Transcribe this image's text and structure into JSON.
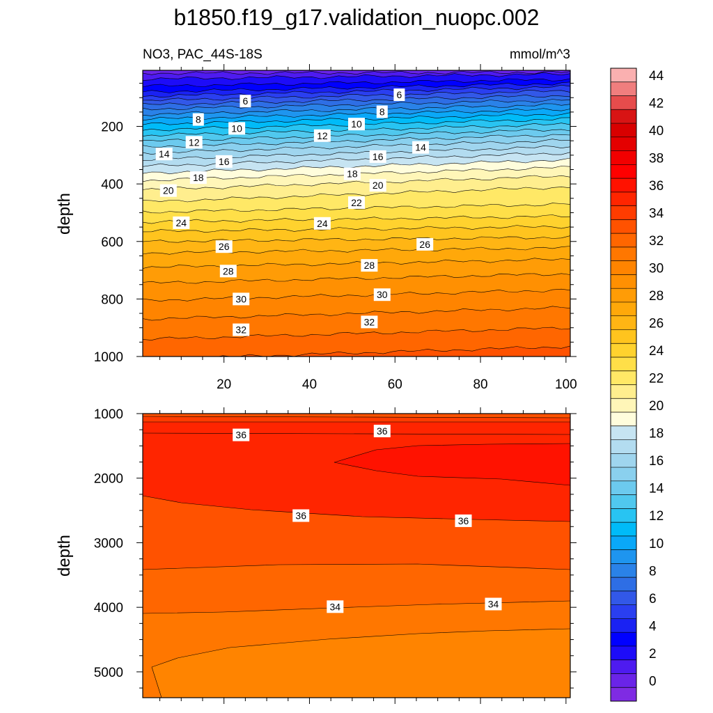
{
  "chart_data": {
    "type": "heatmap",
    "title": "b1850.f19_g17.validation_nuopc.002",
    "subtitle_left": "NO3, PAC_44S-18S",
    "subtitle_right": "mmol/m^3",
    "colorbar": {
      "min": -1,
      "max": 46,
      "labels": [
        0,
        2,
        4,
        6,
        8,
        10,
        12,
        14,
        16,
        18,
        20,
        22,
        24,
        26,
        28,
        30,
        32,
        34,
        36,
        38,
        40,
        42,
        44
      ],
      "colors": [
        "#7f2be3",
        "#6a24e8",
        "#4e1bf0",
        "#1d0cf8",
        "#0000ff",
        "#1a22f3",
        "#2a3ff0",
        "#3258e8",
        "#2e6ee5",
        "#2a82e8",
        "#1e95ef",
        "#0aa8f8",
        "#00bbf8",
        "#28c4f2",
        "#50c8ee",
        "#6ccaee",
        "#8ad0ee",
        "#9fd5ee",
        "#b3dcf0",
        "#c6e4f2",
        "#fffddc",
        "#fff6b8",
        "#ffee8e",
        "#ffe866",
        "#ffdf48",
        "#ffd22e",
        "#ffc41e",
        "#ffb514",
        "#ffa80a",
        "#ff9c06",
        "#ff9002",
        "#ff8400",
        "#ff7700",
        "#ff6600",
        "#ff5200",
        "#ff3c00",
        "#ff2500",
        "#ff1200",
        "#ff0000",
        "#f20000",
        "#e40000",
        "#d80000",
        "#d81414",
        "#e64c4c",
        "#f07e7e",
        "#fab0b0"
      ]
    },
    "panels": [
      {
        "ylabel": "depth",
        "xlabel": "",
        "xlim": [
          1,
          101
        ],
        "ylim": [
          1000,
          5
        ],
        "xticks": [
          20,
          40,
          60,
          80,
          100
        ],
        "yticks": [
          200,
          400,
          600,
          800,
          1000
        ],
        "contours": [
          {
            "value": 1,
            "y0": 15,
            "y1": 12
          },
          {
            "value": 2,
            "y0": 35,
            "y1": 18
          },
          {
            "value": 3,
            "y0": 60,
            "y1": 36
          },
          {
            "value": 4,
            "y0": 80,
            "y1": 50
          },
          {
            "value": 5,
            "y0": 95,
            "y1": 62
          },
          {
            "value": 6,
            "y0": 110,
            "y1": 76
          },
          {
            "value": 7,
            "y0": 125,
            "y1": 92
          },
          {
            "value": 8,
            "y0": 140,
            "y1": 108
          },
          {
            "value": 9,
            "y0": 158,
            "y1": 124
          },
          {
            "value": 10,
            "y0": 175,
            "y1": 140
          },
          {
            "value": 11,
            "y0": 193,
            "y1": 156
          },
          {
            "value": 12,
            "y0": 212,
            "y1": 174
          },
          {
            "value": 13,
            "y0": 232,
            "y1": 192
          },
          {
            "value": 14,
            "y0": 252,
            "y1": 210
          },
          {
            "value": 15,
            "y0": 272,
            "y1": 228
          },
          {
            "value": 16,
            "y0": 292,
            "y1": 248
          },
          {
            "value": 17,
            "y0": 315,
            "y1": 270
          },
          {
            "value": 18,
            "y0": 338,
            "y1": 292
          },
          {
            "value": 19,
            "y0": 362,
            "y1": 316
          },
          {
            "value": 20,
            "y0": 388,
            "y1": 342
          },
          {
            "value": 21,
            "y0": 420,
            "y1": 372
          },
          {
            "value": 22,
            "y0": 462,
            "y1": 410
          },
          {
            "value": 23,
            "y0": 498,
            "y1": 470
          },
          {
            "value": 24,
            "y0": 532,
            "y1": 512
          },
          {
            "value": 25,
            "y0": 565,
            "y1": 548
          },
          {
            "value": 26,
            "y0": 600,
            "y1": 585
          },
          {
            "value": 27,
            "y0": 640,
            "y1": 622
          },
          {
            "value": 28,
            "y0": 690,
            "y1": 662
          },
          {
            "value": 29,
            "y0": 745,
            "y1": 712
          },
          {
            "value": 30,
            "y0": 805,
            "y1": 768
          },
          {
            "value": 31,
            "y0": 870,
            "y1": 830
          },
          {
            "value": 32,
            "y0": 940,
            "y1": 900
          },
          {
            "value": 33,
            "y0": 1010,
            "y1": 965
          }
        ],
        "labels": [
          {
            "text": "6",
            "x": 25,
            "y": 112
          },
          {
            "text": "6",
            "x": 61,
            "y": 90
          },
          {
            "text": "8",
            "x": 14,
            "y": 176
          },
          {
            "text": "8",
            "x": 57,
            "y": 149
          },
          {
            "text": "10",
            "x": 23,
            "y": 207
          },
          {
            "text": "10",
            "x": 51,
            "y": 192
          },
          {
            "text": "12",
            "x": 13,
            "y": 255
          },
          {
            "text": "12",
            "x": 43,
            "y": 232
          },
          {
            "text": "14",
            "x": 6,
            "y": 296
          },
          {
            "text": "14",
            "x": 66,
            "y": 273
          },
          {
            "text": "16",
            "x": 20,
            "y": 322
          },
          {
            "text": "16",
            "x": 56,
            "y": 305
          },
          {
            "text": "18",
            "x": 14,
            "y": 378
          },
          {
            "text": "18",
            "x": 50,
            "y": 365
          },
          {
            "text": "20",
            "x": 7,
            "y": 423
          },
          {
            "text": "20",
            "x": 56,
            "y": 405
          },
          {
            "text": "22",
            "x": 51,
            "y": 465
          },
          {
            "text": "24",
            "x": 10,
            "y": 535
          },
          {
            "text": "24",
            "x": 43,
            "y": 537
          },
          {
            "text": "26",
            "x": 20,
            "y": 618
          },
          {
            "text": "26",
            "x": 67,
            "y": 610
          },
          {
            "text": "28",
            "x": 21,
            "y": 703
          },
          {
            "text": "28",
            "x": 54,
            "y": 683
          },
          {
            "text": "30",
            "x": 24,
            "y": 800
          },
          {
            "text": "30",
            "x": 57,
            "y": 785
          },
          {
            "text": "32",
            "x": 24,
            "y": 907
          },
          {
            "text": "32",
            "x": 54,
            "y": 880
          }
        ]
      },
      {
        "ylabel": "depth",
        "xlabel": "",
        "xlim": [
          1,
          101
        ],
        "ylim": [
          5400,
          1000
        ],
        "xticks": [
          20,
          40,
          60,
          80,
          100
        ],
        "yticks": [
          1000,
          2000,
          3000,
          4000,
          5000
        ],
        "labels": [
          {
            "text": "36",
            "x": 24,
            "y": 1330
          },
          {
            "text": "36",
            "x": 57,
            "y": 1270
          },
          {
            "text": "36",
            "x": 38,
            "y": 2580
          },
          {
            "text": "36",
            "x": 76,
            "y": 2660
          },
          {
            "text": "34",
            "x": 46,
            "y": 3990
          },
          {
            "text": "34",
            "x": 83,
            "y": 3950
          }
        ]
      }
    ]
  }
}
